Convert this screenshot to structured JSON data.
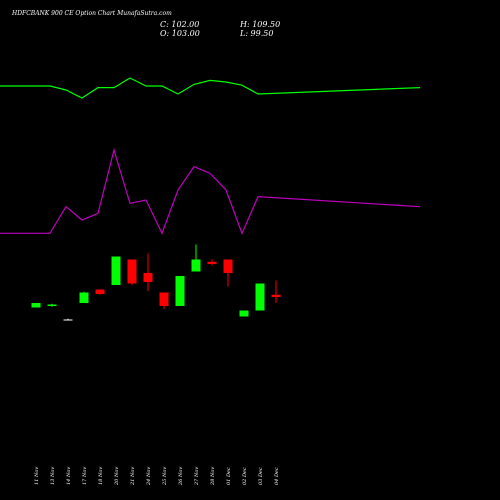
{
  "chart_data": {
    "type": "candlestick",
    "title": "HDFCBANK 900  CE Option  Chart MunafaSutra.com",
    "ohlc": {
      "close": "C: 102.00",
      "open": "O: 103.00",
      "high": "H: 109.50",
      "low": "L: 99.50"
    },
    "categories": [
      "11 Nov",
      "13 Nov",
      "14 Nov",
      "17 Nov",
      "18 Nov",
      "20 Nov",
      "21 Nov",
      "24 Nov",
      "25 Nov",
      "26 Nov",
      "27 Nov",
      "28 Nov",
      "01 Dec",
      "02 Dec",
      "03 Dec",
      "04 Dec"
    ],
    "candles": [
      {
        "o": 40.0,
        "h": 43.0,
        "l": 40.0,
        "c": 43.0,
        "dir": "up"
      },
      {
        "o": 41.0,
        "h": 42.5,
        "l": 40.5,
        "c": 42.0,
        "dir": "up"
      },
      {
        "o": 32.0,
        "h": 32.5,
        "l": 31.5,
        "c": 32.0,
        "dir": "flat"
      },
      {
        "o": 43.0,
        "h": 50.5,
        "l": 43.0,
        "c": 50.0,
        "dir": "up"
      },
      {
        "o": 52.0,
        "h": 52.0,
        "l": 48.5,
        "c": 49.0,
        "dir": "down"
      },
      {
        "o": 55.0,
        "h": 74.0,
        "l": 55.0,
        "c": 74.0,
        "dir": "up"
      },
      {
        "o": 72.0,
        "h": 72.0,
        "l": 55.0,
        "c": 56.0,
        "dir": "down"
      },
      {
        "o": 63.0,
        "h": 76.0,
        "l": 51.0,
        "c": 57.0,
        "dir": "down"
      },
      {
        "o": 50.0,
        "h": 50.0,
        "l": 39.0,
        "c": 41.0,
        "dir": "down"
      },
      {
        "o": 41.0,
        "h": 61.0,
        "l": 41.0,
        "c": 61.0,
        "dir": "up"
      },
      {
        "o": 64.0,
        "h": 82.0,
        "l": 64.0,
        "c": 72.0,
        "dir": "up"
      },
      {
        "o": 70.5,
        "h": 72.0,
        "l": 68.0,
        "c": 69.0,
        "dir": "down"
      },
      {
        "o": 72.0,
        "h": 72.0,
        "l": 54.0,
        "c": 63.0,
        "dir": "down"
      },
      {
        "o": 34.0,
        "h": 38.0,
        "l": 34.0,
        "c": 38.0,
        "dir": "up"
      },
      {
        "o": 38.0,
        "h": 56.0,
        "l": 38.0,
        "c": 56.0,
        "dir": "up"
      },
      {
        "o": 48.5,
        "h": 58.0,
        "l": 43.0,
        "c": 47.0,
        "dir": "down"
      }
    ],
    "price_line": [
      100,
      100,
      99.5,
      98.5,
      99.8,
      99.8,
      101,
      100,
      100,
      99,
      100.2,
      100.7,
      100.5,
      100.1,
      99,
      99.8
    ],
    "volume_line": [
      32,
      32,
      40,
      36,
      38,
      57,
      41,
      42,
      32,
      45,
      52,
      50,
      45,
      32,
      43,
      40
    ],
    "colors": {
      "up": "#00ff00",
      "down": "#ff0000",
      "flat": "#ffffff",
      "price_line": "#00ff00",
      "volume_line": "#c000c0",
      "background": "#000000"
    },
    "xlabel": "",
    "ylabel": ""
  }
}
